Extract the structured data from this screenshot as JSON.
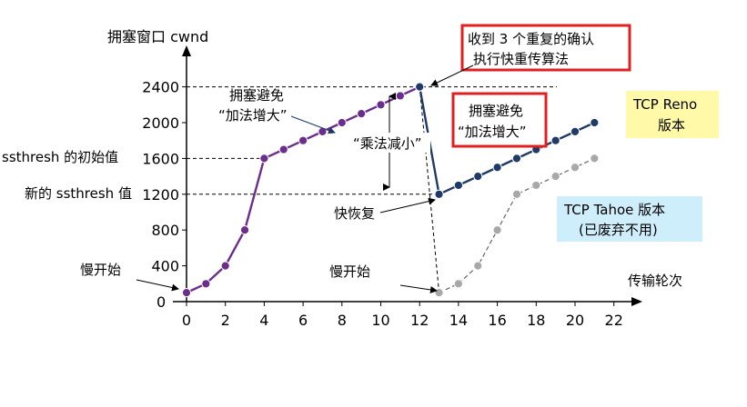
{
  "chart_data": {
    "type": "line",
    "ylabel": "拥塞窗口 cwnd",
    "xlabel": "传输轮次",
    "xlim": [
      0,
      22
    ],
    "ylim": [
      0,
      2400
    ],
    "x_ticks": [
      0,
      2,
      4,
      6,
      8,
      10,
      12,
      14,
      16,
      18,
      20,
      22
    ],
    "y_ticks": [
      0,
      400,
      800,
      1200,
      1600,
      2000,
      2400
    ],
    "grid": false,
    "series": [
      {
        "name": "TCP Reno 版本",
        "color": "#6b2e8f",
        "x": [
          0,
          1,
          2,
          3,
          4,
          5,
          6,
          7,
          8,
          9,
          10,
          11,
          12
        ],
        "values": [
          100,
          200,
          400,
          800,
          1600,
          1700,
          1800,
          1900,
          2000,
          2100,
          2200,
          2300,
          2400
        ]
      },
      {
        "name": "TCP Reno 版本",
        "color": "#1f3a68",
        "x": [
          12,
          13,
          14,
          15,
          16,
          17,
          18,
          19,
          20,
          21
        ],
        "values": [
          2400,
          1200,
          1300,
          1400,
          1500,
          1600,
          1700,
          1800,
          1900,
          2000
        ]
      },
      {
        "name": "TCP Tahoe 版本",
        "color": "#888888",
        "x": [
          13,
          14,
          15,
          16,
          17,
          18,
          19,
          20,
          21
        ],
        "values": [
          100,
          200,
          400,
          800,
          1200,
          1300,
          1400,
          1500,
          1600
        ]
      }
    ],
    "annotations": {
      "ssthresh_initial_label": "ssthresh 的初始值",
      "ssthresh_new_label": "新的 ssthresh 值",
      "slow_start_1": "慢开始",
      "slow_start_2": "慢开始",
      "congestion_avoidance_1a": "拥塞避免",
      "congestion_avoidance_1b": "“加法增大”",
      "congestion_avoidance_2a": "拥塞避免",
      "congestion_avoidance_2b": "“加法增大”",
      "multiplicative_decrease": "“乘法减小”",
      "fast_recovery": "快恢复",
      "fast_retransmit_a": "收到 3 个重复的确认",
      "fast_retransmit_b": "执行快重传算法",
      "reno_a": "TCP Reno",
      "reno_b": "版本",
      "tahoe_a": "TCP Tahoe 版本",
      "tahoe_b": "(已废弃不用)"
    }
  }
}
